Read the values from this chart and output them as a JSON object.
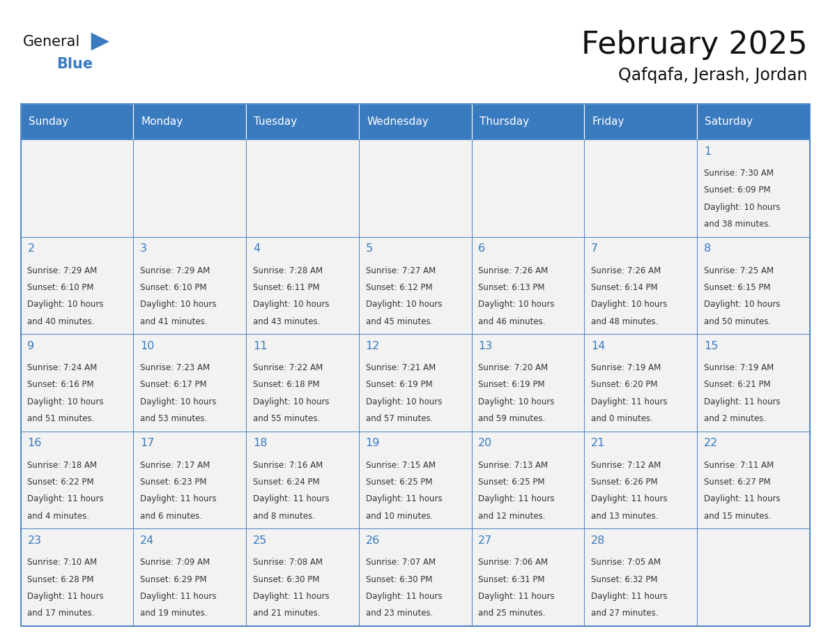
{
  "title": "February 2025",
  "subtitle": "Qafqafa, Jerash, Jordan",
  "days_of_week": [
    "Sunday",
    "Monday",
    "Tuesday",
    "Wednesday",
    "Thursday",
    "Friday",
    "Saturday"
  ],
  "header_bg": "#3a7abf",
  "header_text": "#ffffff",
  "cell_bg": "#f2f2f2",
  "cell_border": "#3a7abf",
  "day_number_color": "#3a7abf",
  "info_text_color": "#333333",
  "title_color": "#111111",
  "subtitle_color": "#111111",
  "logo_general_color": "#111111",
  "logo_blue_color": "#3a7abf",
  "calendar": [
    [
      null,
      null,
      null,
      null,
      null,
      null,
      {
        "day": 1,
        "sunrise": "7:30 AM",
        "sunset": "6:09 PM",
        "daylight": "10 hours and 38 minutes."
      }
    ],
    [
      {
        "day": 2,
        "sunrise": "7:29 AM",
        "sunset": "6:10 PM",
        "daylight": "10 hours and 40 minutes."
      },
      {
        "day": 3,
        "sunrise": "7:29 AM",
        "sunset": "6:10 PM",
        "daylight": "10 hours and 41 minutes."
      },
      {
        "day": 4,
        "sunrise": "7:28 AM",
        "sunset": "6:11 PM",
        "daylight": "10 hours and 43 minutes."
      },
      {
        "day": 5,
        "sunrise": "7:27 AM",
        "sunset": "6:12 PM",
        "daylight": "10 hours and 45 minutes."
      },
      {
        "day": 6,
        "sunrise": "7:26 AM",
        "sunset": "6:13 PM",
        "daylight": "10 hours and 46 minutes."
      },
      {
        "day": 7,
        "sunrise": "7:26 AM",
        "sunset": "6:14 PM",
        "daylight": "10 hours and 48 minutes."
      },
      {
        "day": 8,
        "sunrise": "7:25 AM",
        "sunset": "6:15 PM",
        "daylight": "10 hours and 50 minutes."
      }
    ],
    [
      {
        "day": 9,
        "sunrise": "7:24 AM",
        "sunset": "6:16 PM",
        "daylight": "10 hours and 51 minutes."
      },
      {
        "day": 10,
        "sunrise": "7:23 AM",
        "sunset": "6:17 PM",
        "daylight": "10 hours and 53 minutes."
      },
      {
        "day": 11,
        "sunrise": "7:22 AM",
        "sunset": "6:18 PM",
        "daylight": "10 hours and 55 minutes."
      },
      {
        "day": 12,
        "sunrise": "7:21 AM",
        "sunset": "6:19 PM",
        "daylight": "10 hours and 57 minutes."
      },
      {
        "day": 13,
        "sunrise": "7:20 AM",
        "sunset": "6:19 PM",
        "daylight": "10 hours and 59 minutes."
      },
      {
        "day": 14,
        "sunrise": "7:19 AM",
        "sunset": "6:20 PM",
        "daylight": "11 hours and 0 minutes."
      },
      {
        "day": 15,
        "sunrise": "7:19 AM",
        "sunset": "6:21 PM",
        "daylight": "11 hours and 2 minutes."
      }
    ],
    [
      {
        "day": 16,
        "sunrise": "7:18 AM",
        "sunset": "6:22 PM",
        "daylight": "11 hours and 4 minutes."
      },
      {
        "day": 17,
        "sunrise": "7:17 AM",
        "sunset": "6:23 PM",
        "daylight": "11 hours and 6 minutes."
      },
      {
        "day": 18,
        "sunrise": "7:16 AM",
        "sunset": "6:24 PM",
        "daylight": "11 hours and 8 minutes."
      },
      {
        "day": 19,
        "sunrise": "7:15 AM",
        "sunset": "6:25 PM",
        "daylight": "11 hours and 10 minutes."
      },
      {
        "day": 20,
        "sunrise": "7:13 AM",
        "sunset": "6:25 PM",
        "daylight": "11 hours and 12 minutes."
      },
      {
        "day": 21,
        "sunrise": "7:12 AM",
        "sunset": "6:26 PM",
        "daylight": "11 hours and 13 minutes."
      },
      {
        "day": 22,
        "sunrise": "7:11 AM",
        "sunset": "6:27 PM",
        "daylight": "11 hours and 15 minutes."
      }
    ],
    [
      {
        "day": 23,
        "sunrise": "7:10 AM",
        "sunset": "6:28 PM",
        "daylight": "11 hours and 17 minutes."
      },
      {
        "day": 24,
        "sunrise": "7:09 AM",
        "sunset": "6:29 PM",
        "daylight": "11 hours and 19 minutes."
      },
      {
        "day": 25,
        "sunrise": "7:08 AM",
        "sunset": "6:30 PM",
        "daylight": "11 hours and 21 minutes."
      },
      {
        "day": 26,
        "sunrise": "7:07 AM",
        "sunset": "6:30 PM",
        "daylight": "11 hours and 23 minutes."
      },
      {
        "day": 27,
        "sunrise": "7:06 AM",
        "sunset": "6:31 PM",
        "daylight": "11 hours and 25 minutes."
      },
      {
        "day": 28,
        "sunrise": "7:05 AM",
        "sunset": "6:32 PM",
        "daylight": "11 hours and 27 minutes."
      },
      null
    ]
  ],
  "fig_width": 11.88,
  "fig_height": 9.18,
  "dpi": 100
}
